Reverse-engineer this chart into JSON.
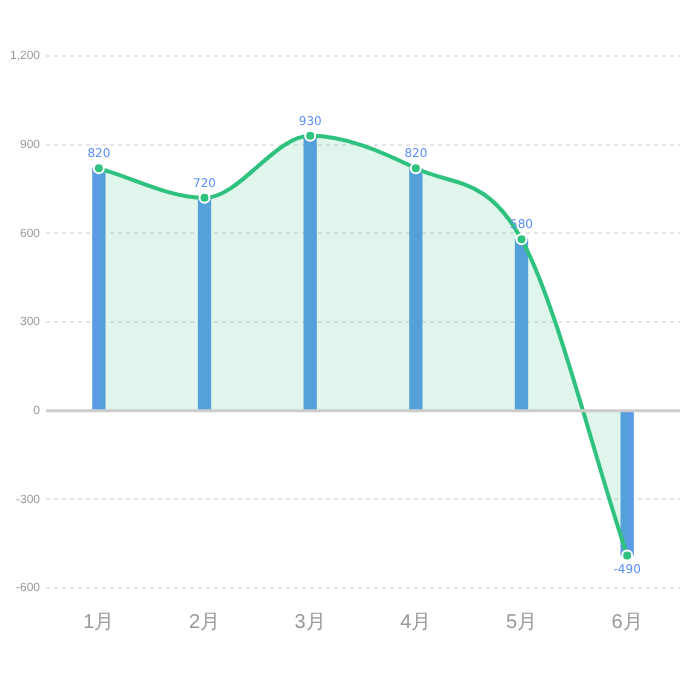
{
  "chart_data": {
    "type": "bar",
    "categories": [
      "1月",
      "2月",
      "3月",
      "4月",
      "5月",
      "6月"
    ],
    "series": [
      {
        "color": "#5b9be8",
        "values": [
          820,
          720,
          930,
          820,
          580,
          -490
        ]
      },
      {
        "type": "area",
        "color": "#2ec27e",
        "values": [
          820,
          720,
          930,
          820,
          580,
          -490
        ],
        "value_labels": [
          "820",
          "720",
          "930",
          "820",
          "580",
          "-490"
        ]
      }
    ],
    "ylim": [
      -600,
      1200
    ],
    "yticks": [
      -600,
      -300,
      0,
      300,
      600,
      900,
      {
        "value": 1200,
        "label": "1,200"
      }
    ],
    "ref_lines": [
      {
        "axis": "y",
        "value": 0,
        "color": "#cccccc"
      }
    ],
    "grid": "y",
    "legend": false,
    "marker": "circle",
    "line_style": "solid"
  }
}
